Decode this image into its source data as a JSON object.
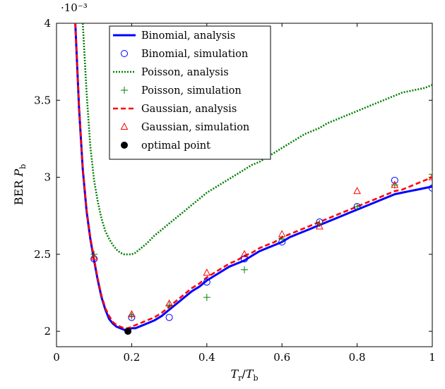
{
  "chart_data": {
    "type": "line",
    "xlabel": "T_r/T_b",
    "ylabel": "BER P_b",
    "y_scale_label": "·10⁻³",
    "xlim": [
      0,
      1
    ],
    "ylim": [
      1.9,
      4
    ],
    "x_ticks": [
      0,
      0.2,
      0.4,
      0.6,
      0.8,
      1
    ],
    "x_tick_labels": [
      "0",
      "0.2",
      "0.4",
      "0.6",
      "0.8",
      "1"
    ],
    "y_ticks": [
      2,
      2.5,
      3,
      3.5,
      4
    ],
    "y_tick_labels": [
      "2",
      "2.5",
      "3",
      "3.5",
      "4"
    ],
    "legend_position": "top-center",
    "series": [
      {
        "name": "Binomial, analysis",
        "style": "solid-line",
        "color": "#0000ff",
        "x": [
          0.05,
          0.06,
          0.07,
          0.08,
          0.09,
          0.1,
          0.11,
          0.12,
          0.13,
          0.14,
          0.15,
          0.16,
          0.17,
          0.18,
          0.19,
          0.2,
          0.21,
          0.22,
          0.24,
          0.26,
          0.28,
          0.3,
          0.32,
          0.34,
          0.36,
          0.38,
          0.4,
          0.42,
          0.44,
          0.46,
          0.48,
          0.5,
          0.52,
          0.54,
          0.56,
          0.58,
          0.6,
          0.62,
          0.64,
          0.66,
          0.68,
          0.7,
          0.72,
          0.74,
          0.76,
          0.78,
          0.8,
          0.82,
          0.84,
          0.86,
          0.88,
          0.9,
          0.92,
          0.94,
          0.96,
          0.98,
          1.0
        ],
        "y": [
          4.0,
          3.45,
          3.05,
          2.78,
          2.6,
          2.46,
          2.33,
          2.22,
          2.14,
          2.08,
          2.05,
          2.03,
          2.02,
          2.01,
          2.01,
          2.02,
          2.02,
          2.03,
          2.05,
          2.07,
          2.1,
          2.14,
          2.18,
          2.22,
          2.26,
          2.29,
          2.33,
          2.36,
          2.39,
          2.42,
          2.44,
          2.46,
          2.49,
          2.52,
          2.54,
          2.56,
          2.58,
          2.61,
          2.63,
          2.65,
          2.67,
          2.69,
          2.71,
          2.73,
          2.75,
          2.77,
          2.79,
          2.81,
          2.83,
          2.85,
          2.87,
          2.89,
          2.9,
          2.91,
          2.92,
          2.93,
          2.94
        ]
      },
      {
        "name": "Binomial, simulation",
        "style": "circle",
        "color": "#0000ff",
        "x": [
          0.1,
          0.2,
          0.3,
          0.4,
          0.5,
          0.6,
          0.7,
          0.8,
          0.9,
          1.0
        ],
        "y": [
          2.47,
          2.09,
          2.09,
          2.32,
          2.47,
          2.58,
          2.71,
          2.81,
          2.98,
          2.93
        ]
      },
      {
        "name": "Poisson, analysis",
        "style": "dotted-line",
        "color": "#008000",
        "x": [
          0.07,
          0.08,
          0.09,
          0.1,
          0.11,
          0.12,
          0.13,
          0.14,
          0.15,
          0.16,
          0.17,
          0.18,
          0.19,
          0.2,
          0.21,
          0.22,
          0.24,
          0.26,
          0.28,
          0.3,
          0.32,
          0.34,
          0.36,
          0.38,
          0.4,
          0.42,
          0.44,
          0.46,
          0.48,
          0.5,
          0.52,
          0.54,
          0.56,
          0.58,
          0.6,
          0.62,
          0.64,
          0.66,
          0.68,
          0.7,
          0.72,
          0.74,
          0.76,
          0.78,
          0.8,
          0.82,
          0.84,
          0.86,
          0.88,
          0.9,
          0.92,
          0.94,
          0.96,
          0.98,
          1.0
        ],
        "y": [
          4.0,
          3.55,
          3.2,
          2.98,
          2.84,
          2.73,
          2.65,
          2.6,
          2.56,
          2.53,
          2.51,
          2.5,
          2.5,
          2.5,
          2.51,
          2.53,
          2.57,
          2.62,
          2.66,
          2.7,
          2.74,
          2.78,
          2.82,
          2.86,
          2.9,
          2.93,
          2.96,
          2.99,
          3.02,
          3.05,
          3.08,
          3.1,
          3.13,
          3.16,
          3.19,
          3.22,
          3.25,
          3.28,
          3.3,
          3.32,
          3.35,
          3.37,
          3.39,
          3.41,
          3.43,
          3.45,
          3.47,
          3.49,
          3.51,
          3.53,
          3.55,
          3.56,
          3.57,
          3.58,
          3.6
        ]
      },
      {
        "name": "Poisson, simulation",
        "style": "plus",
        "color": "#008000",
        "x": [
          0.1,
          0.2,
          0.3,
          0.4,
          0.5,
          0.6,
          0.7,
          0.8,
          0.9,
          1.0
        ],
        "y": [
          2.5,
          2.1,
          2.17,
          2.22,
          2.4,
          2.6,
          2.7,
          2.81,
          2.95,
          3.02
        ]
      },
      {
        "name": "Gaussian, analysis",
        "style": "dashed-line",
        "color": "#ff0000",
        "x": [
          0.05,
          0.06,
          0.07,
          0.08,
          0.09,
          0.1,
          0.11,
          0.12,
          0.13,
          0.14,
          0.15,
          0.16,
          0.17,
          0.18,
          0.19,
          0.2,
          0.21,
          0.22,
          0.24,
          0.26,
          0.28,
          0.3,
          0.32,
          0.34,
          0.36,
          0.38,
          0.4,
          0.42,
          0.44,
          0.46,
          0.48,
          0.5,
          0.52,
          0.54,
          0.56,
          0.58,
          0.6,
          0.62,
          0.64,
          0.66,
          0.68,
          0.7,
          0.72,
          0.74,
          0.76,
          0.78,
          0.8,
          0.82,
          0.84,
          0.86,
          0.88,
          0.9,
          0.92,
          0.94,
          0.96,
          0.98,
          1.0
        ],
        "y": [
          4.0,
          3.46,
          3.06,
          2.79,
          2.61,
          2.47,
          2.34,
          2.23,
          2.15,
          2.1,
          2.06,
          2.04,
          2.03,
          2.02,
          2.02,
          2.03,
          2.04,
          2.05,
          2.07,
          2.09,
          2.12,
          2.16,
          2.2,
          2.24,
          2.28,
          2.31,
          2.35,
          2.38,
          2.41,
          2.44,
          2.46,
          2.49,
          2.51,
          2.54,
          2.56,
          2.58,
          2.61,
          2.63,
          2.65,
          2.67,
          2.69,
          2.71,
          2.73,
          2.75,
          2.77,
          2.79,
          2.81,
          2.83,
          2.85,
          2.87,
          2.89,
          2.91,
          2.92,
          2.94,
          2.96,
          2.98,
          3.0
        ]
      },
      {
        "name": "Gaussian, simulation",
        "style": "triangle",
        "color": "#ff0000",
        "x": [
          0.1,
          0.2,
          0.3,
          0.4,
          0.5,
          0.6,
          0.7,
          0.8,
          0.9,
          1.0
        ],
        "y": [
          2.48,
          2.11,
          2.18,
          2.38,
          2.5,
          2.63,
          2.68,
          2.91,
          2.95,
          3.0
        ]
      },
      {
        "name": "optimal point",
        "style": "filled-circle",
        "color": "#000000",
        "x": [
          0.19
        ],
        "y": [
          2.0
        ]
      }
    ]
  }
}
